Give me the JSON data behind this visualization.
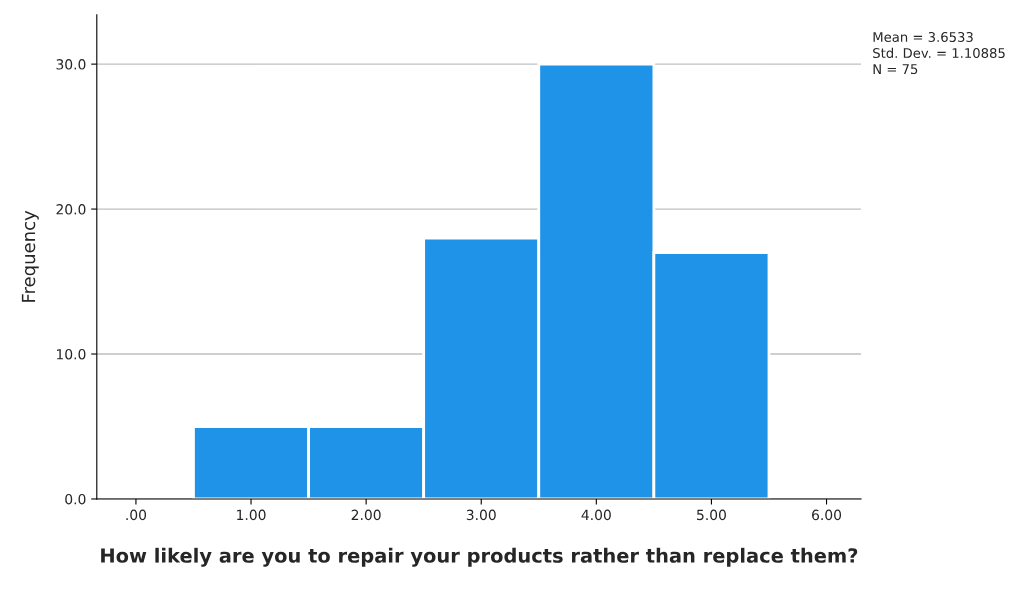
{
  "chart_data": {
    "type": "histogram",
    "xlabel": "How likely are you to repair your products rather than replace them?",
    "ylabel": "Frequency",
    "bins": [
      0.5,
      1.5,
      2.5,
      3.5,
      4.5,
      5.5
    ],
    "values": [
      5,
      5,
      18,
      30,
      17
    ],
    "color": "#1f93e8",
    "xlim": [
      -0.34,
      6.3
    ],
    "xticks": [
      {
        "value": 0,
        "label": ".00"
      },
      {
        "value": 1,
        "label": "1.00"
      },
      {
        "value": 2,
        "label": "2.00"
      },
      {
        "value": 3,
        "label": "3.00"
      },
      {
        "value": 4,
        "label": "4.00"
      },
      {
        "value": 5,
        "label": "5.00"
      },
      {
        "value": 6,
        "label": "6.00"
      }
    ],
    "ylim": [
      0,
      33.4
    ],
    "yticks": [
      {
        "value": 0,
        "label": "0.0"
      },
      {
        "value": 10,
        "label": "10.0"
      },
      {
        "value": 20,
        "label": "20.0"
      },
      {
        "value": 30,
        "label": "30.0"
      }
    ],
    "grid": "y",
    "annotations": [
      "Mean = 3.6533",
      "Std. Dev. = 1.10885",
      "N = 75"
    ]
  }
}
